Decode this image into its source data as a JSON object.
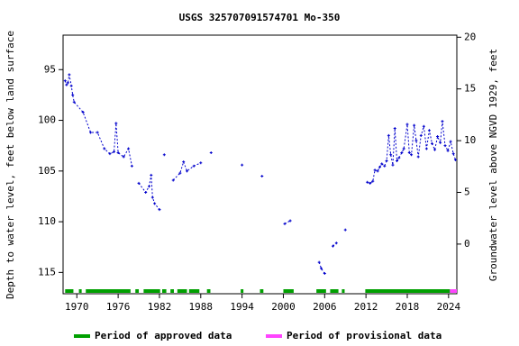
{
  "chart_data": {
    "type": "scatter",
    "title": "USGS 325707091574701 Mo-350",
    "y_label": "Depth to water level, feet below land surface",
    "y2_label": "Groundwater level above NGVD 1929, feet",
    "xlim": [
      1968.0,
      2025.2
    ],
    "xticks": [
      1970,
      1976,
      1982,
      1988,
      1994,
      2000,
      2006,
      2012,
      2018,
      2024
    ],
    "ylim": [
      91.6,
      117.1
    ],
    "y_inverted": true,
    "yticks": [
      95,
      100,
      105,
      110,
      115
    ],
    "y2lim": [
      -4.8,
      20.2
    ],
    "y2ticks": [
      0,
      5,
      10,
      15,
      20
    ],
    "series": [
      {
        "name": "Depth to water level",
        "color": "#0000cc",
        "x": [
          1968.3,
          1968.5,
          1968.7,
          1968.9,
          1969.2,
          1969.4,
          1969.6,
          1970.9,
          1972.0,
          1973.0,
          1974.0,
          1974.8,
          1975.4,
          1975.7,
          1976.0,
          1976.8,
          1977.5,
          1978.0,
          null,
          1979.0,
          1980.0,
          1980.5,
          1980.8,
          1981.0,
          1981.3,
          1982.0,
          null,
          1982.7,
          null,
          1984.0,
          1985.0,
          1985.5,
          1986.0,
          1987.0,
          1988.0,
          null,
          1989.5,
          null,
          1994.0,
          null,
          1996.9,
          null,
          2000.2,
          2001.0,
          null,
          2005.2,
          2005.5,
          2006.0,
          null,
          2007.2,
          2007.7,
          null,
          2009.0,
          null,
          2012.2,
          2012.6,
          2013.0,
          2013.3,
          2013.7,
          2014.0,
          2014.3,
          2014.7,
          2015.0,
          2015.3,
          2015.6,
          2015.9,
          2016.2,
          2016.5,
          2016.8,
          2017.2,
          2017.5,
          2018.0,
          2018.3,
          2018.6,
          2019.0,
          2019.3,
          2019.6,
          2020.0,
          2020.4,
          2020.8,
          2021.2,
          2021.6,
          2022.0,
          2022.4,
          2022.8,
          2023.1,
          2023.5,
          2023.9,
          2024.3,
          2024.7,
          2025.0
        ],
        "values": [
          96.1,
          96.5,
          96.3,
          95.5,
          96.6,
          97.5,
          98.2,
          99.2,
          101.2,
          101.2,
          102.8,
          103.3,
          103.1,
          100.3,
          103.2,
          103.6,
          102.8,
          104.5,
          null,
          106.2,
          107.1,
          106.5,
          105.4,
          107.6,
          108.2,
          108.8,
          null,
          103.4,
          null,
          105.9,
          105.2,
          104.1,
          105.0,
          104.5,
          104.2,
          null,
          103.2,
          null,
          104.4,
          null,
          105.5,
          null,
          110.2,
          109.9,
          null,
          114.0,
          114.6,
          115.1,
          null,
          112.4,
          112.1,
          null,
          110.8,
          null,
          106.1,
          106.2,
          106.0,
          104.9,
          105.0,
          104.6,
          104.3,
          104.5,
          104.0,
          101.5,
          103.4,
          104.4,
          100.8,
          104.0,
          103.7,
          103.2,
          102.8,
          100.4,
          103.2,
          103.4,
          100.5,
          102.0,
          103.6,
          101.5,
          100.6,
          102.8,
          101.0,
          102.3,
          102.9,
          101.6,
          102.2,
          100.1,
          102.5,
          103.0,
          102.1,
          103.3,
          103.9
        ]
      }
    ],
    "periods": [
      {
        "name": "Period of approved data",
        "color": "#00a000",
        "spans": [
          [
            1968.3,
            1969.5
          ],
          [
            1970.3,
            1970.7
          ],
          [
            1971.3,
            1977.8
          ],
          [
            1978.5,
            1979.0
          ],
          [
            1979.7,
            1982.1
          ],
          [
            1982.4,
            1983.0
          ],
          [
            1983.6,
            1984.1
          ],
          [
            1984.6,
            1986.0
          ],
          [
            1986.3,
            1987.8
          ],
          [
            1988.9,
            1989.4
          ],
          [
            1993.8,
            1994.2
          ],
          [
            1996.6,
            1997.1
          ],
          [
            2000.0,
            2001.5
          ],
          [
            2004.8,
            2006.2
          ],
          [
            2006.8,
            2008.0
          ],
          [
            2008.5,
            2008.9
          ],
          [
            2011.9,
            2024.2
          ]
        ]
      },
      {
        "name": "Period of provisional data",
        "color": "#ff44ff",
        "spans": [
          [
            2024.2,
            2025.2
          ]
        ]
      }
    ]
  }
}
